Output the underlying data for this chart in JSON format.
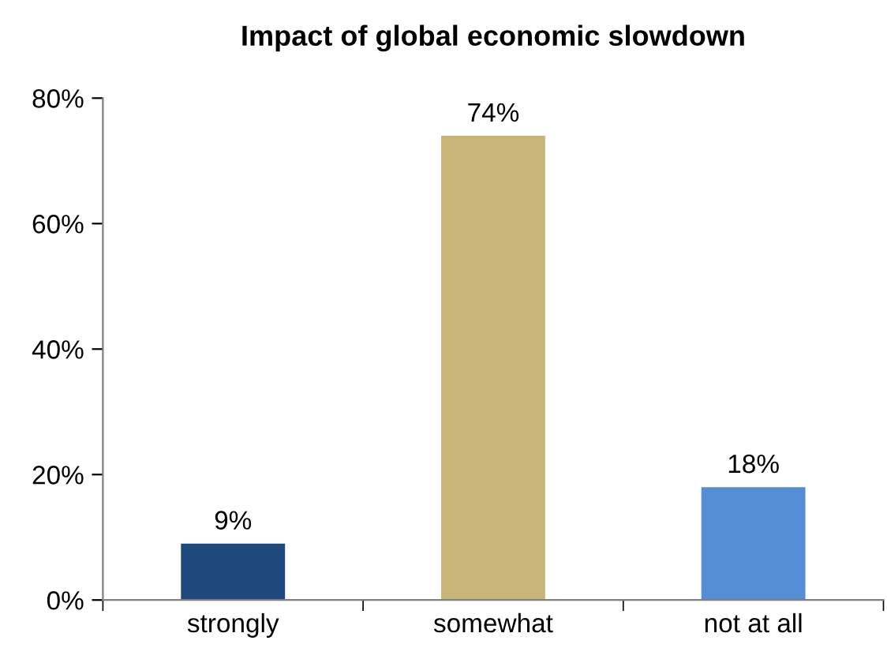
{
  "chart_data": {
    "type": "bar",
    "title": "Impact of global economic slowdown",
    "categories": [
      "strongly",
      "somewhat",
      "not at all"
    ],
    "values": [
      9,
      74,
      18
    ],
    "colors": [
      "#1f497d",
      "#c9b47a",
      "#558ed5"
    ],
    "value_labels": [
      "9%",
      "74%",
      "18%"
    ],
    "ylim": [
      0,
      80
    ],
    "yticks": [
      {
        "value": 0,
        "label": "0%"
      },
      {
        "value": 20,
        "label": "20%"
      },
      {
        "value": 40,
        "label": "40%"
      },
      {
        "value": 60,
        "label": "60%"
      },
      {
        "value": 80,
        "label": "80%"
      }
    ],
    "grid": false,
    "legend": false
  }
}
